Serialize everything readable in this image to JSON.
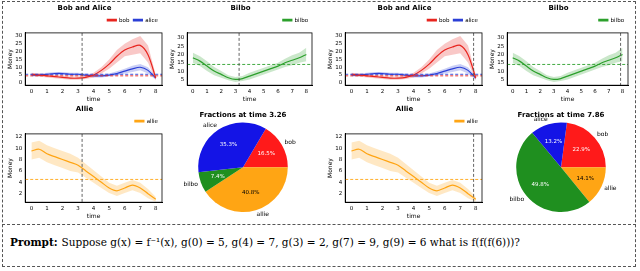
{
  "chart_data": [
    {
      "type": "line",
      "title": "Bob and Alice",
      "x_label": "time",
      "y_label": "Money",
      "x": [
        0,
        0.5,
        1,
        1.5,
        2,
        2.5,
        3,
        3.5,
        4,
        4.5,
        5,
        5.5,
        6,
        6.5,
        7,
        7.5,
        8
      ],
      "xlim": [
        -0.4,
        8.4
      ],
      "xticks": [
        0,
        1,
        2,
        3,
        4,
        5,
        6,
        7,
        8
      ],
      "ylim": [
        -1.5,
        32
      ],
      "yticks": [
        0,
        5,
        10,
        15,
        20,
        25,
        30
      ],
      "vline": 3.26,
      "legend": "top",
      "grid": false,
      "series": [
        {
          "name": "bob",
          "color": "#e8251f",
          "hline": 4.5,
          "values": [
            5.5,
            5,
            4.5,
            4,
            3.5,
            3,
            3,
            3.5,
            5,
            8,
            12,
            17,
            21,
            23,
            24,
            18,
            3
          ],
          "lower": [
            4.5,
            4,
            3.5,
            3,
            2.5,
            2,
            2,
            2.5,
            3.5,
            6,
            9,
            13,
            17,
            18,
            19,
            13,
            1.5
          ],
          "upper": [
            6.5,
            6,
            5.5,
            5,
            4.5,
            4,
            4,
            4.5,
            6.5,
            10,
            15,
            21,
            25,
            28,
            30,
            24,
            5
          ]
        },
        {
          "name": "alice",
          "color": "#2b3fd6",
          "hline": 5.5,
          "values": [
            5,
            5,
            5.5,
            6,
            6,
            5.5,
            5.5,
            5,
            4.5,
            4.5,
            5,
            6,
            7.5,
            9,
            10,
            8,
            3
          ],
          "lower": [
            4,
            4,
            4.5,
            5,
            5,
            4.5,
            4.5,
            4,
            3.5,
            3.5,
            4,
            4.5,
            6,
            7,
            8,
            6,
            2
          ],
          "upper": [
            6,
            6,
            6.5,
            7,
            7,
            6.5,
            6.5,
            6,
            5.5,
            5.5,
            6,
            7.5,
            9,
            11,
            12,
            10,
            4
          ]
        }
      ]
    },
    {
      "type": "line",
      "title": "Bilbo",
      "x_label": "time",
      "y_label": "Money",
      "x": [
        0,
        0.5,
        1,
        1.5,
        2,
        2.5,
        3,
        3.5,
        4,
        4.5,
        5,
        5.5,
        6,
        6.5,
        7,
        7.5,
        8
      ],
      "xlim": [
        -0.4,
        8.4
      ],
      "xticks": [
        0,
        1,
        2,
        3,
        4,
        5,
        6,
        7,
        8
      ],
      "ylim": [
        1.5,
        33
      ],
      "yticks": [
        5,
        10,
        15,
        20,
        25,
        30
      ],
      "vline": 3.26,
      "legend": "top",
      "grid": false,
      "series": [
        {
          "name": "bilbo",
          "color": "#2ca02c",
          "hline": 14,
          "values": [
            18,
            16,
            13,
            10,
            8,
            6,
            5,
            5.5,
            7,
            8.5,
            10,
            11.5,
            13,
            15,
            16.5,
            18,
            20
          ],
          "lower": [
            15,
            13,
            10,
            7.5,
            6,
            4.5,
            3.5,
            4,
            5,
            6.5,
            8,
            9.5,
            11,
            12.5,
            13.5,
            15,
            16
          ],
          "upper": [
            21,
            19,
            16,
            12.5,
            10,
            7.5,
            6.5,
            7,
            9,
            10.5,
            12,
            13.5,
            15,
            17.5,
            19.5,
            21,
            24
          ]
        }
      ]
    },
    {
      "type": "line",
      "title": "Allie",
      "x_label": "time",
      "y_label": "Money",
      "x": [
        0,
        0.5,
        1,
        1.5,
        2,
        2.5,
        3,
        3.5,
        4,
        4.5,
        5,
        5.5,
        6,
        6.5,
        7,
        7.5,
        8
      ],
      "xlim": [
        -0.4,
        8.4
      ],
      "xticks": [
        0,
        1,
        2,
        3,
        4,
        5,
        6,
        7,
        8
      ],
      "ylim": [
        0.5,
        12.5
      ],
      "yticks": [
        2,
        4,
        6,
        8,
        10,
        12
      ],
      "vline": 3.26,
      "legend": "top",
      "grid": false,
      "series": [
        {
          "name": "allie",
          "color": "#ffa514",
          "hline": 4.5,
          "values": [
            9.5,
            9.8,
            9,
            8.5,
            8,
            7.5,
            7,
            6,
            5,
            4,
            3,
            2.5,
            3,
            3.5,
            3,
            2,
            1
          ],
          "lower": [
            8,
            8.3,
            7.5,
            7,
            6.5,
            6,
            5.7,
            4.8,
            3.9,
            3,
            2.1,
            1.6,
            2.1,
            2.6,
            2.1,
            1.2,
            0.6
          ],
          "upper": [
            11,
            11.3,
            10.5,
            10,
            9.5,
            9,
            8.3,
            7.2,
            6.1,
            5,
            3.9,
            3.4,
            3.9,
            4.4,
            3.9,
            2.8,
            1.4
          ]
        }
      ]
    },
    {
      "type": "pie",
      "title": "Fractions at time 3.26",
      "categories": [
        "bob",
        "allie",
        "bilbo",
        "alice"
      ],
      "values": [
        16.5,
        40.8,
        7.4,
        35.3
      ],
      "value_labels": [
        "16.5%",
        "40.8%",
        "7.4%",
        "35.3%"
      ],
      "colors": [
        "#ff1a1a",
        "#ffa514",
        "#1f8f1f",
        "#1414e6"
      ],
      "data_labels": true
    },
    {
      "type": "line",
      "title": "Bob and Alice",
      "x_label": "time",
      "y_label": "Money",
      "x": [
        0,
        0.5,
        1,
        1.5,
        2,
        2.5,
        3,
        3.5,
        4,
        4.5,
        5,
        5.5,
        6,
        6.5,
        7,
        7.5,
        8
      ],
      "xlim": [
        -0.4,
        8.4
      ],
      "xticks": [
        0,
        1,
        2,
        3,
        4,
        5,
        6,
        7,
        8
      ],
      "ylim": [
        -1.5,
        32
      ],
      "yticks": [
        0,
        5,
        10,
        15,
        20,
        25,
        30
      ],
      "vline": 7.86,
      "legend": "top",
      "grid": false,
      "series": [
        {
          "name": "bob",
          "color": "#e8251f",
          "hline": 4.5,
          "values": [
            5.5,
            5,
            4.5,
            4,
            3.5,
            3,
            3,
            3.5,
            5,
            8,
            12,
            17,
            21,
            23,
            24,
            18,
            3
          ],
          "lower": [
            4.5,
            4,
            3.5,
            3,
            2.5,
            2,
            2,
            2.5,
            3.5,
            6,
            9,
            13,
            17,
            18,
            19,
            13,
            1.5
          ],
          "upper": [
            6.5,
            6,
            5.5,
            5,
            4.5,
            4,
            4,
            4.5,
            6.5,
            10,
            15,
            21,
            25,
            28,
            30,
            24,
            5
          ]
        },
        {
          "name": "alice",
          "color": "#2b3fd6",
          "hline": 5.5,
          "values": [
            5,
            5,
            5.5,
            6,
            6,
            5.5,
            5.5,
            5,
            4.5,
            4.5,
            5,
            6,
            7.5,
            9,
            10,
            8,
            3
          ],
          "lower": [
            4,
            4,
            4.5,
            5,
            5,
            4.5,
            4.5,
            4,
            3.5,
            3.5,
            4,
            4.5,
            6,
            7,
            8,
            6,
            2
          ],
          "upper": [
            6,
            6,
            6.5,
            7,
            7,
            6.5,
            6.5,
            6,
            5.5,
            5.5,
            6,
            7.5,
            9,
            11,
            12,
            10,
            4
          ]
        }
      ]
    },
    {
      "type": "line",
      "title": "Bilbo",
      "x_label": "time",
      "y_label": "Money",
      "x": [
        0,
        0.5,
        1,
        1.5,
        2,
        2.5,
        3,
        3.5,
        4,
        4.5,
        5,
        5.5,
        6,
        6.5,
        7,
        7.5,
        8
      ],
      "xlim": [
        -0.4,
        8.4
      ],
      "xticks": [
        0,
        1,
        2,
        3,
        4,
        5,
        6,
        7,
        8
      ],
      "ylim": [
        1.5,
        33
      ],
      "yticks": [
        5,
        10,
        15,
        20,
        25,
        30
      ],
      "vline": 7.86,
      "legend": "top",
      "grid": false,
      "series": [
        {
          "name": "bilbo",
          "color": "#2ca02c",
          "hline": 14,
          "values": [
            18,
            16,
            13,
            10,
            8,
            6,
            5,
            5.5,
            7,
            8.5,
            10,
            11.5,
            13,
            15,
            16.5,
            18,
            20
          ],
          "lower": [
            15,
            13,
            10,
            7.5,
            6,
            4.5,
            3.5,
            4,
            5,
            6.5,
            8,
            9.5,
            11,
            12.5,
            13.5,
            15,
            16
          ],
          "upper": [
            21,
            19,
            16,
            12.5,
            10,
            7.5,
            6.5,
            7,
            9,
            10.5,
            12,
            13.5,
            15,
            17.5,
            19.5,
            21,
            24
          ]
        }
      ]
    },
    {
      "type": "line",
      "title": "Allie",
      "x_label": "time",
      "y_label": "Money",
      "x": [
        0,
        0.5,
        1,
        1.5,
        2,
        2.5,
        3,
        3.5,
        4,
        4.5,
        5,
        5.5,
        6,
        6.5,
        7,
        7.5,
        8
      ],
      "xlim": [
        -0.4,
        8.4
      ],
      "xticks": [
        0,
        1,
        2,
        3,
        4,
        5,
        6,
        7,
        8
      ],
      "ylim": [
        0.5,
        12.5
      ],
      "yticks": [
        2,
        4,
        6,
        8,
        10,
        12
      ],
      "vline": 7.86,
      "legend": "top",
      "grid": false,
      "series": [
        {
          "name": "allie",
          "color": "#ffa514",
          "hline": 4.5,
          "values": [
            9.5,
            9.8,
            9,
            8.5,
            8,
            7.5,
            7,
            6,
            5,
            4,
            3,
            2.5,
            3,
            3.5,
            3,
            2,
            1
          ],
          "lower": [
            8,
            8.3,
            7.5,
            7,
            6.5,
            6,
            5.7,
            4.8,
            3.9,
            3,
            2.1,
            1.6,
            2.1,
            2.6,
            2.1,
            1.2,
            0.6
          ],
          "upper": [
            11,
            11.3,
            10.5,
            10,
            9.5,
            9,
            8.3,
            7.2,
            6.1,
            5,
            3.9,
            3.4,
            3.9,
            4.4,
            3.9,
            2.8,
            1.4
          ]
        }
      ]
    },
    {
      "type": "pie",
      "title": "Fractions at time 7.86",
      "categories": [
        "bob",
        "allie",
        "bilbo",
        "alice"
      ],
      "values": [
        22.9,
        14.1,
        49.8,
        13.2
      ],
      "value_labels": [
        "22.9%",
        "14.1%",
        "49.8%",
        "13.2%"
      ],
      "colors": [
        "#ff1a1a",
        "#ffa514",
        "#1f8f1f",
        "#1414e6"
      ],
      "data_labels": true
    }
  ],
  "prompt": {
    "label": "Prompt:",
    "text": "Suppose g(x) = f⁻¹(x), g(0) = 5, g(4) = 7, g(3) = 2, g(7) = 9, g(9) = 6 what is f(f(f(6)))?"
  }
}
